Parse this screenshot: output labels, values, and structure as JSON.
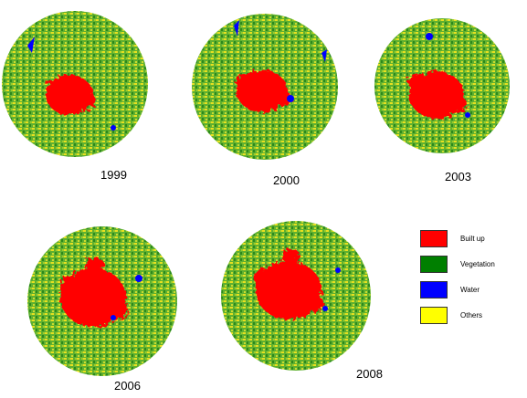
{
  "maps": [
    {
      "year": "1999"
    },
    {
      "year": "2000"
    },
    {
      "year": "2003"
    },
    {
      "year": "2006"
    },
    {
      "year": "2008"
    }
  ],
  "legend": [
    {
      "label": "Built up",
      "color": "#ff0000"
    },
    {
      "label": "Vegetation",
      "color": "#007f00"
    },
    {
      "label": "Water",
      "color": "#0000ff"
    },
    {
      "label": "Others",
      "color": "#ffff00"
    }
  ]
}
